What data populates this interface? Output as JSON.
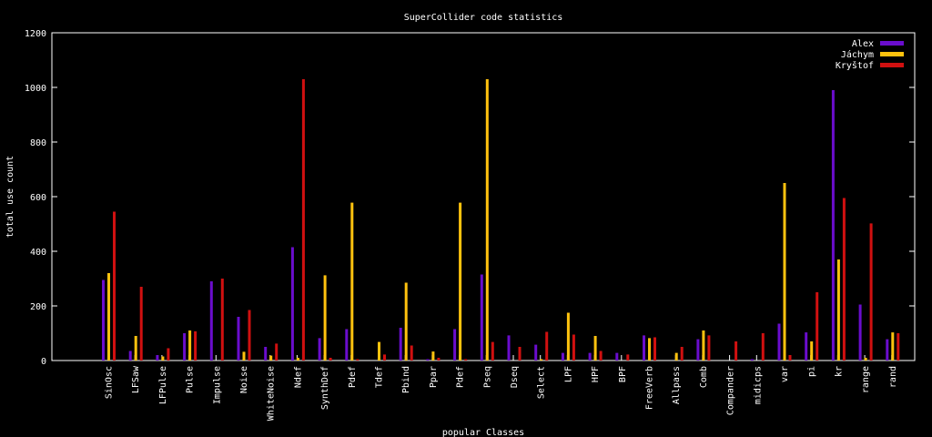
{
  "chart_data": {
    "type": "bar",
    "title": "SuperCollider code statistics",
    "xlabel": "popular Classes",
    "ylabel": "total use count",
    "ylim": [
      0,
      1200
    ],
    "yticks": [
      0,
      200,
      400,
      600,
      800,
      1000,
      1200
    ],
    "grid": false,
    "legend_position": "top-right",
    "categories": [
      "SinOsc",
      "LFSaw",
      "LFPulse",
      "Pulse",
      "Impulse",
      "Noise",
      "WhiteNoise",
      "Ndef",
      "SynthDef",
      "Pdef",
      "Tdef",
      "Pbind",
      "Ppar",
      "Pdef",
      "Pseq",
      "Dseq",
      "Select",
      "LPF",
      "HPF",
      "BPF",
      "FreeVerb",
      "Allpass",
      "Comb",
      "Compander",
      "midicps",
      "var",
      "pi",
      "kr",
      "range",
      "rand"
    ],
    "series": [
      {
        "name": "Alex",
        "color": "#6a0dcd",
        "values": [
          295,
          35,
          20,
          100,
          290,
          160,
          50,
          415,
          82,
          115,
          0,
          120,
          5,
          115,
          315,
          92,
          58,
          28,
          28,
          28,
          92,
          0,
          78,
          0,
          5,
          135,
          103,
          990,
          205,
          78
        ]
      },
      {
        "name": "Jáchym",
        "color": "#ffc20e",
        "values": [
          320,
          90,
          15,
          110,
          0,
          32,
          18,
          10,
          312,
          578,
          68,
          285,
          33,
          578,
          1030,
          0,
          5,
          175,
          90,
          0,
          82,
          28,
          110,
          0,
          0,
          650,
          70,
          370,
          10,
          103
        ]
      },
      {
        "name": "Kryštof",
        "color": "#d01010",
        "values": [
          545,
          270,
          45,
          107,
          300,
          185,
          62,
          1030,
          10,
          5,
          22,
          55,
          10,
          5,
          68,
          50,
          105,
          95,
          35,
          22,
          85,
          50,
          92,
          70,
          100,
          20,
          250,
          595,
          502,
          100
        ]
      }
    ]
  }
}
